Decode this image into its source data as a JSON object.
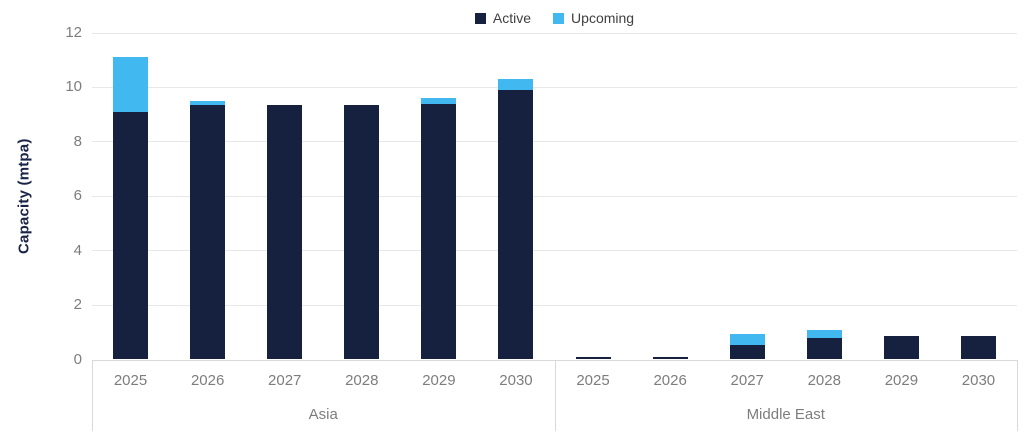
{
  "chart_data": {
    "type": "bar",
    "stacked": true,
    "title": "",
    "xlabel": "",
    "ylabel": "Capacity (mtpa)",
    "ylim": [
      0,
      12
    ],
    "yticks": [
      0,
      2,
      4,
      6,
      8,
      10,
      12
    ],
    "grid": true,
    "legend_position": "top-center",
    "groups": [
      {
        "label": "Asia",
        "categories": [
          "2025",
          "2026",
          "2027",
          "2028",
          "2029",
          "2030"
        ],
        "series": [
          {
            "name": "Active",
            "color": "#16213f",
            "values": [
              9.1,
              9.35,
              9.35,
              9.35,
              9.4,
              9.9
            ]
          },
          {
            "name": "Upcoming",
            "color": "#41b9f0",
            "values": [
              2.0,
              0.15,
              0,
              0,
              0.2,
              0.4
            ]
          }
        ]
      },
      {
        "label": "Middle East",
        "categories": [
          "2025",
          "2026",
          "2027",
          "2028",
          "2029",
          "2030"
        ],
        "series": [
          {
            "name": "Active",
            "color": "#16213f",
            "values": [
              0.1,
              0.1,
              0.55,
              0.8,
              0.85,
              0.85
            ]
          },
          {
            "name": "Upcoming",
            "color": "#41b9f0",
            "values": [
              0,
              0,
              0.4,
              0.3,
              0,
              0
            ]
          }
        ]
      }
    ]
  },
  "colors": {
    "active": "#16213f",
    "upcoming": "#41b9f0",
    "gridline": "#e8e8e8",
    "axis_line": "#d9d9d9",
    "tick_text": "#7d7d7d",
    "legend_text": "#404040",
    "y_title_text": "#1a2446",
    "background": "#ffffff"
  }
}
